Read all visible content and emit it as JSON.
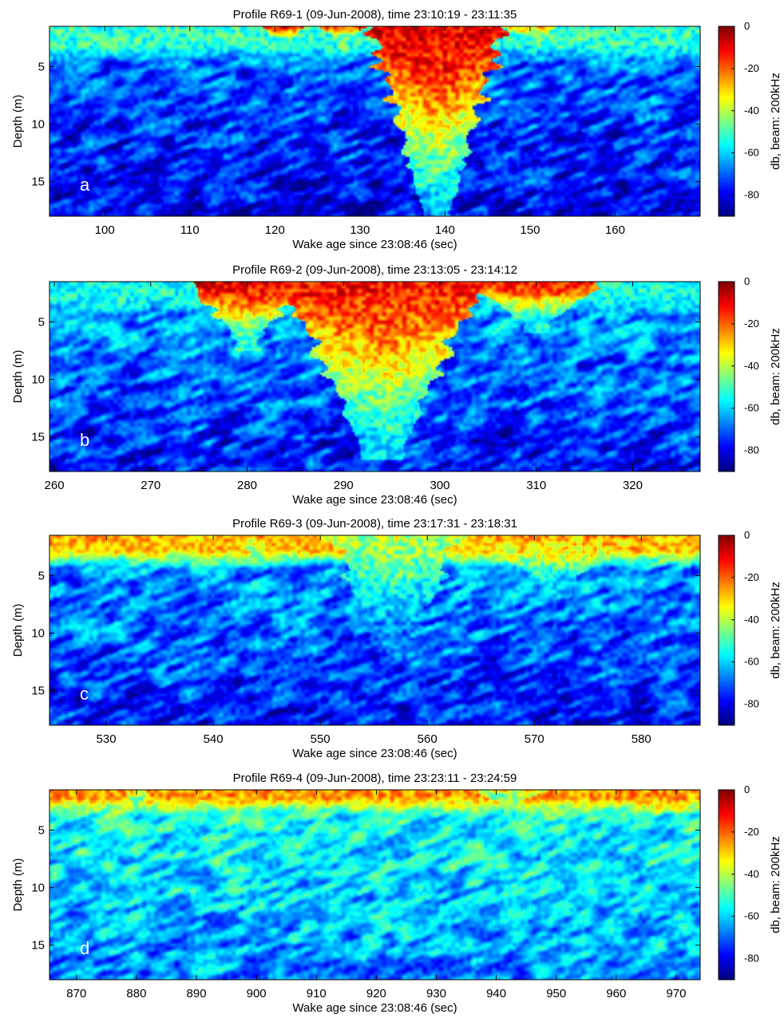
{
  "figure": {
    "colormap": "jet",
    "colorbar": {
      "label": "db, beam: 200kHz",
      "range": [
        -90,
        0
      ],
      "ticks": [
        0,
        -20,
        -40,
        -60,
        -80
      ],
      "tick_labels": [
        "0",
        "-20",
        "-40",
        "-60",
        "-80"
      ]
    }
  },
  "chart_data": [
    {
      "type": "heatmap",
      "title": "Profile R69-1 (09-Jun-2008), time 23:10:19 - 23:11:35",
      "xlabel": "Wake age since 23:08:46 (sec)",
      "ylabel": "Depth (m)",
      "panel_label": "a",
      "xlim": [
        93.5,
        170
      ],
      "ylim": [
        18,
        1.5
      ],
      "y_reversed": true,
      "xticks": [
        100,
        110,
        120,
        130,
        140,
        150,
        160
      ],
      "yticks": [
        5,
        10,
        15
      ],
      "value_units": "dB",
      "value_range": [
        -90,
        0
      ],
      "features": {
        "surface_layer": [
          {
            "x0": 93.5,
            "x1": 170,
            "depth": 3.2,
            "db": -52
          }
        ],
        "wake_plumes": [
          {
            "x0": 118.5,
            "x1": 124,
            "center": 121,
            "depth": 2.6,
            "db": -12
          },
          {
            "x0": 125,
            "x1": 131,
            "center": 128,
            "depth": 2.6,
            "db": -14
          },
          {
            "x0": 130.5,
            "x1": 146.5,
            "center": 139,
            "depth": 17.5,
            "db": -8
          },
          {
            "x0": 147,
            "x1": 154,
            "center": 150,
            "depth": 3,
            "db": -28
          }
        ],
        "background_db": -72
      }
    },
    {
      "type": "heatmap",
      "title": "Profile R69-2 (09-Jun-2008), time 23:13:05 - 23:14:12",
      "xlabel": "Wake age since 23:08:46 (sec)",
      "ylabel": "Depth (m)",
      "panel_label": "b",
      "xlim": [
        259.5,
        327
      ],
      "ylim": [
        18,
        1.5
      ],
      "y_reversed": true,
      "xticks": [
        260,
        270,
        280,
        290,
        300,
        310,
        320
      ],
      "yticks": [
        5,
        10,
        15
      ],
      "value_units": "dB",
      "value_range": [
        -90,
        0
      ],
      "features": {
        "surface_layer": [
          {
            "x0": 259.5,
            "x1": 327,
            "depth": 3,
            "db": -55
          }
        ],
        "wake_plumes": [
          {
            "x0": 275,
            "x1": 287,
            "center": 280,
            "depth": 6.5,
            "db": -8
          },
          {
            "x0": 284,
            "x1": 304,
            "center": 294,
            "depth": 16,
            "db": -12
          },
          {
            "x0": 302,
            "x1": 315,
            "center": 310,
            "depth": 5,
            "db": -12
          }
        ],
        "background_db": -68
      }
    },
    {
      "type": "heatmap",
      "title": "Profile R69-3 (09-Jun-2008), time 23:17:31 - 23:18:31",
      "xlabel": "Wake age since 23:08:46 (sec)",
      "ylabel": "Depth (m)",
      "panel_label": "c",
      "xlim": [
        524.7,
        585.5
      ],
      "ylim": [
        18,
        1.5
      ],
      "y_reversed": true,
      "xticks": [
        530,
        540,
        550,
        560,
        570,
        580
      ],
      "yticks": [
        5,
        10,
        15
      ],
      "value_units": "dB",
      "value_range": [
        -90,
        0
      ],
      "features": {
        "surface_layer": [
          {
            "x0": 524.7,
            "x1": 585.5,
            "depth": 2.8,
            "db": -28
          }
        ],
        "wake_plumes": [
          {
            "x0": 551,
            "x1": 563,
            "center": 557,
            "depth": 12,
            "db": -40
          },
          {
            "x0": 565,
            "x1": 578,
            "center": 572,
            "depth": 6,
            "db": -25
          },
          {
            "x0": 541,
            "x1": 547,
            "center": 544,
            "depth": 3,
            "db": -22
          }
        ],
        "background_db": -68
      }
    },
    {
      "type": "heatmap",
      "title": "Profile R69-4 (09-Jun-2008), time 23:23:11 - 23:24:59",
      "xlabel": "Wake age since 23:08:46 (sec)",
      "ylabel": "Depth (m)",
      "panel_label": "d",
      "xlim": [
        865.5,
        974
      ],
      "ylim": [
        18,
        1.5
      ],
      "y_reversed": true,
      "xticks": [
        870,
        880,
        890,
        900,
        910,
        920,
        930,
        940,
        950,
        960,
        970
      ],
      "yticks": [
        5,
        10,
        15
      ],
      "value_units": "dB",
      "value_range": [
        -90,
        0
      ],
      "features": {
        "surface_layer": [
          {
            "x0": 865.5,
            "x1": 974,
            "depth": 2.2,
            "db": -25
          }
        ],
        "wake_plumes": [
          {
            "x0": 878,
            "x1": 882,
            "center": 880,
            "depth": 3,
            "db": -30
          },
          {
            "x0": 935,
            "x1": 950,
            "center": 942,
            "depth": 2.5,
            "db": -30
          }
        ],
        "background_db": -58
      }
    }
  ]
}
